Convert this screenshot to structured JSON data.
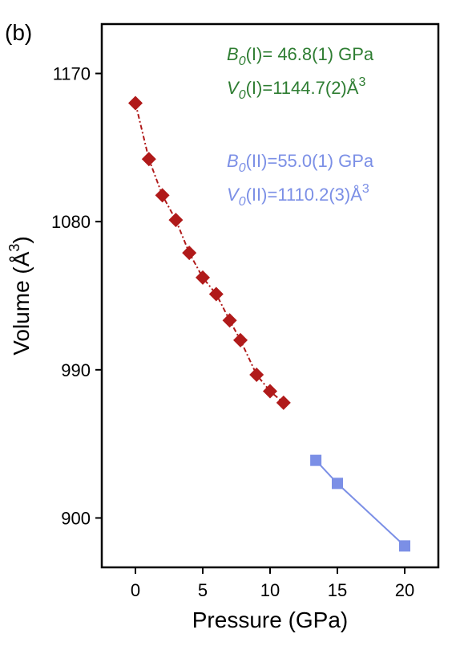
{
  "panel_label": "(b)",
  "chart_data": {
    "type": "scatter",
    "xlabel": "Pressure (GPa)",
    "ylabel": "Volume (Å³)",
    "xlim": [
      -2.5,
      22.5
    ],
    "ylim": [
      870,
      1200
    ],
    "x_ticks": [
      0,
      5,
      10,
      15,
      20
    ],
    "y_ticks": [
      900,
      990,
      1080,
      1170
    ],
    "grid": false,
    "legend": "none",
    "series": [
      {
        "color": "#b01a1a",
        "marker": "diamond",
        "line": "dash-dot",
        "points": [
          {
            "x": 0.0,
            "y": 1152
          },
          {
            "x": 1.0,
            "y": 1118
          },
          {
            "x": 2.0,
            "y": 1096
          },
          {
            "x": 3.0,
            "y": 1081
          },
          {
            "x": 4.0,
            "y": 1061
          },
          {
            "x": 5.0,
            "y": 1046
          },
          {
            "x": 6.0,
            "y": 1036
          },
          {
            "x": 7.0,
            "y": 1020
          },
          {
            "x": 7.8,
            "y": 1008
          },
          {
            "x": 9.0,
            "y": 987
          },
          {
            "x": 10.0,
            "y": 977
          },
          {
            "x": 11.0,
            "y": 970
          }
        ]
      },
      {
        "color": "#7b8fe6",
        "marker": "square",
        "line": "solid",
        "points": [
          {
            "x": 13.4,
            "y": 935
          },
          {
            "x": 15.0,
            "y": 921
          },
          {
            "x": 20.0,
            "y": 883
          }
        ]
      }
    ],
    "annotations": [
      {
        "prefix": "B",
        "sub": "0",
        "rest": "(I)= 46.8(1) GPa",
        "sup": "",
        "color": "#2e7d32"
      },
      {
        "prefix": "V",
        "sub": "0",
        "rest": "(I)=1144.7(2)Å",
        "sup": "3",
        "color": "#2e7d32"
      },
      {
        "prefix": "B",
        "sub": "0",
        "rest": "(II)=55.0(1) GPa",
        "sup": "",
        "color": "#7b8fe6"
      },
      {
        "prefix": "V",
        "sub": "0",
        "rest": "(II)=1110.2(3)Å",
        "sup": "3",
        "color": "#7b8fe6"
      }
    ]
  }
}
